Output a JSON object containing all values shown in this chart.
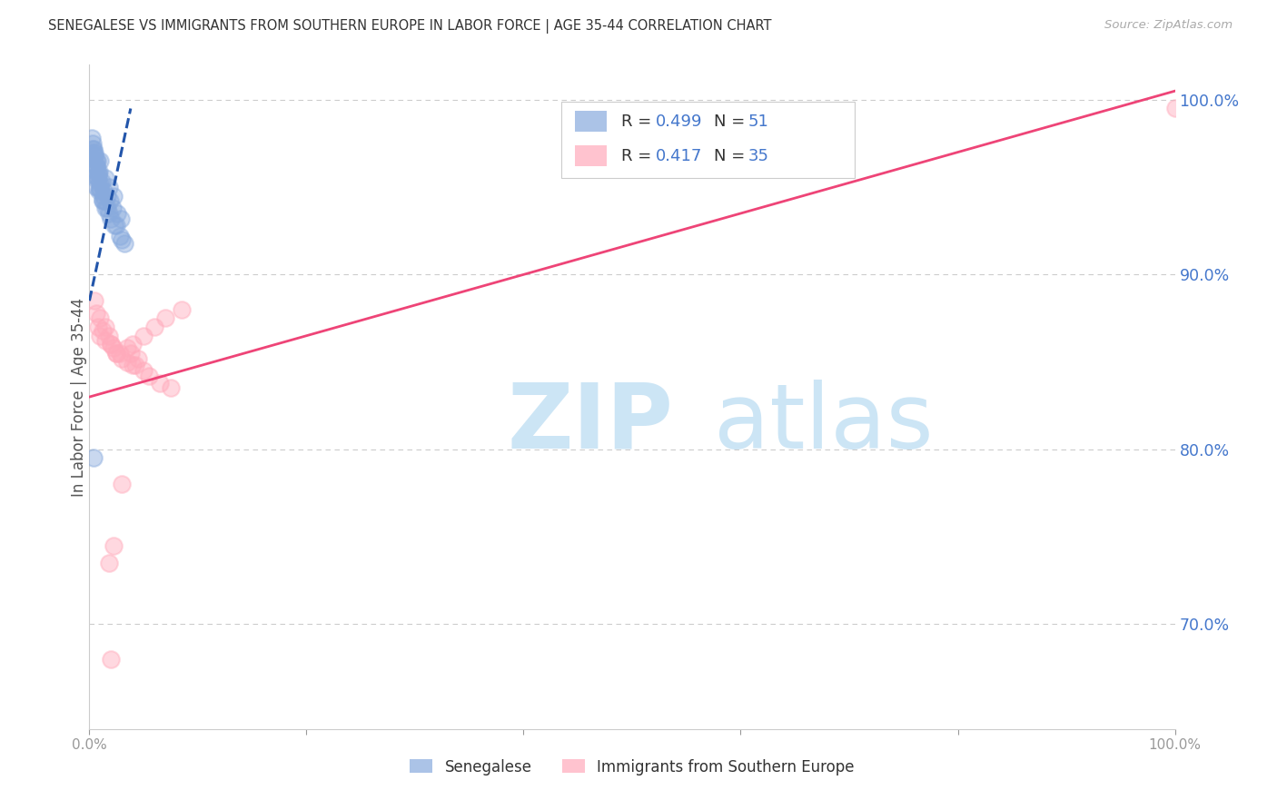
{
  "title": "SENEGALESE VS IMMIGRANTS FROM SOUTHERN EUROPE IN LABOR FORCE | AGE 35-44 CORRELATION CHART",
  "source": "Source: ZipAtlas.com",
  "ylabel": "In Labor Force | Age 35-44",
  "r1": "0.499",
  "n1": "51",
  "r2": "0.417",
  "n2": "35",
  "blue_x": [
    0.5,
    1.0,
    1.5,
    1.8,
    2.2,
    0.3,
    0.4,
    0.6,
    0.8,
    1.1,
    1.3,
    1.6,
    1.9,
    2.1,
    2.6,
    2.9,
    0.7,
    0.9,
    0.5,
    0.6,
    0.8,
    1.0,
    1.2,
    0.3,
    0.4,
    0.5,
    0.7,
    0.9,
    1.2,
    1.5,
    0.2,
    0.4,
    0.6,
    0.8,
    1.0,
    1.3,
    1.6,
    2.0,
    2.3,
    3.0,
    0.3,
    0.5,
    0.7,
    1.0,
    1.4,
    1.8,
    2.5,
    2.8,
    3.2,
    0.6,
    0.4
  ],
  "blue_y": [
    97.0,
    96.5,
    95.5,
    95.0,
    94.5,
    97.5,
    96.8,
    96.2,
    95.8,
    95.3,
    94.8,
    94.5,
    94.2,
    93.8,
    93.5,
    93.2,
    96.5,
    95.9,
    96.8,
    96.2,
    95.5,
    94.9,
    94.3,
    97.2,
    96.6,
    96.0,
    95.4,
    94.8,
    94.2,
    93.8,
    97.8,
    97.2,
    96.5,
    95.8,
    95.2,
    94.5,
    93.8,
    93.2,
    92.8,
    92.0,
    97.0,
    96.3,
    95.6,
    94.9,
    94.2,
    93.5,
    92.8,
    92.2,
    91.8,
    95.0,
    79.5
  ],
  "pink_x": [
    0.5,
    1.0,
    1.5,
    1.8,
    2.0,
    2.5,
    3.0,
    3.5,
    4.0,
    5.0,
    6.0,
    7.0,
    8.5,
    0.6,
    1.2,
    2.2,
    3.8,
    4.5,
    1.5,
    2.8,
    4.2,
    5.5,
    7.5,
    0.8,
    2.0,
    3.5,
    5.0,
    1.0,
    2.5,
    4.0,
    6.5,
    3.0,
    2.2,
    1.8,
    2.0
  ],
  "pink_y": [
    88.5,
    87.5,
    87.0,
    86.5,
    86.0,
    85.5,
    85.2,
    85.8,
    86.0,
    86.5,
    87.0,
    87.5,
    88.0,
    87.8,
    86.8,
    85.8,
    85.5,
    85.2,
    86.2,
    85.5,
    84.8,
    84.2,
    83.5,
    87.0,
    86.0,
    85.0,
    84.5,
    86.5,
    85.5,
    84.8,
    83.8,
    78.0,
    74.5,
    73.5,
    68.0
  ],
  "pink_x_far": [
    100.0
  ],
  "pink_y_far": [
    99.5
  ],
  "blue_line_x": [
    0.0,
    3.8
  ],
  "blue_line_y": [
    88.5,
    99.5
  ],
  "pink_line_x": [
    0.0,
    100.0
  ],
  "pink_line_y": [
    83.0,
    100.5
  ],
  "blue_scatter_color": "#88aadd",
  "pink_scatter_color": "#ffaabb",
  "blue_line_color": "#2255aa",
  "pink_line_color": "#ee4477",
  "watermark_zip_color": "#cce5f5",
  "watermark_atlas_color": "#cce5f5",
  "grid_color": "#cccccc",
  "right_tick_color": "#4477cc",
  "bottom_tick_color": "#999999",
  "legend_text_color": "#333333",
  "legend_value_color": "#4477cc",
  "ylim_low": 64,
  "ylim_high": 102,
  "xlim_low": 0,
  "xlim_high": 100
}
